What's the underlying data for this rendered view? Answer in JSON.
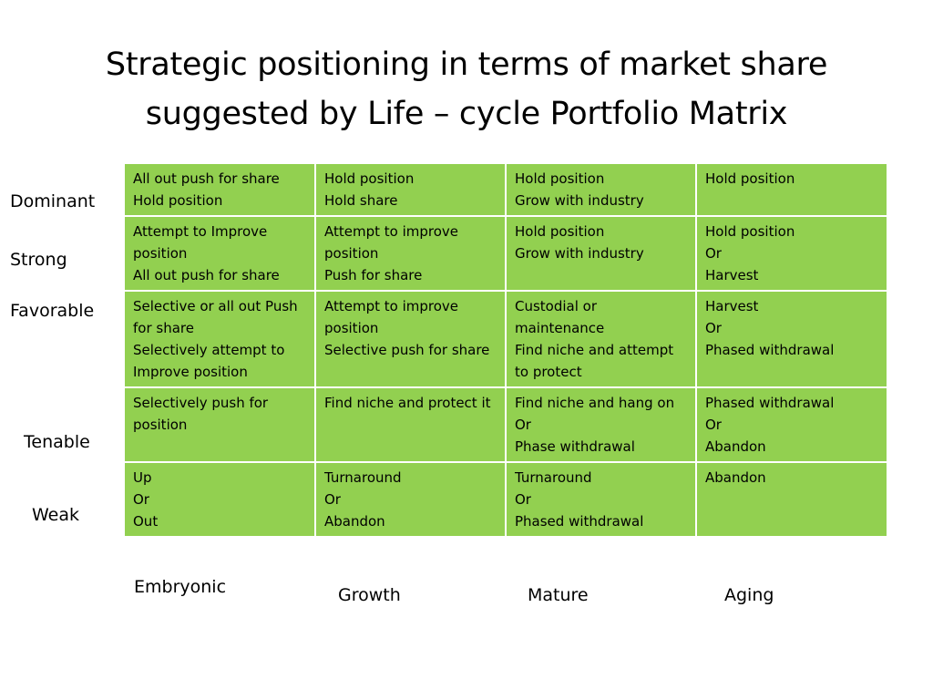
{
  "slide": {
    "title_line1": "Strategic positioning in terms of market share",
    "title_line2": "suggested by Life – cycle Portfolio Matrix"
  },
  "row_labels": [
    "Dominant",
    "Strong",
    "Favorable",
    "Tenable",
    "Weak"
  ],
  "column_labels": [
    "Embryonic",
    "Growth",
    "Mature",
    "Aging"
  ],
  "matrix": {
    "fill_color": "#92D050",
    "rows": [
      [
        "All out push for share\nHold position",
        "Hold position\nHold share",
        "Hold position\nGrow with industry",
        "Hold position"
      ],
      [
        "Attempt to Improve position\nAll out push for share",
        "Attempt to improve position\nPush for share",
        "Hold position\nGrow with industry",
        "Hold position\nOr\nHarvest"
      ],
      [
        "Selective or all out Push for share\nSelectively attempt to Improve position",
        "Attempt to improve position\nSelective push for share",
        "Custodial or maintenance\nFind niche and attempt to protect",
        "Harvest\nOr\nPhased withdrawal"
      ],
      [
        "Selectively push for position",
        "Find niche and protect it",
        "Find niche and hang on\nOr\nPhase withdrawal",
        "Phased withdrawal\nOr\nAbandon"
      ],
      [
        "Up\nOr\nOut",
        "Turnaround\nOr\nAbandon",
        "Turnaround\nOr\nPhased withdrawal",
        "Abandon"
      ]
    ]
  }
}
